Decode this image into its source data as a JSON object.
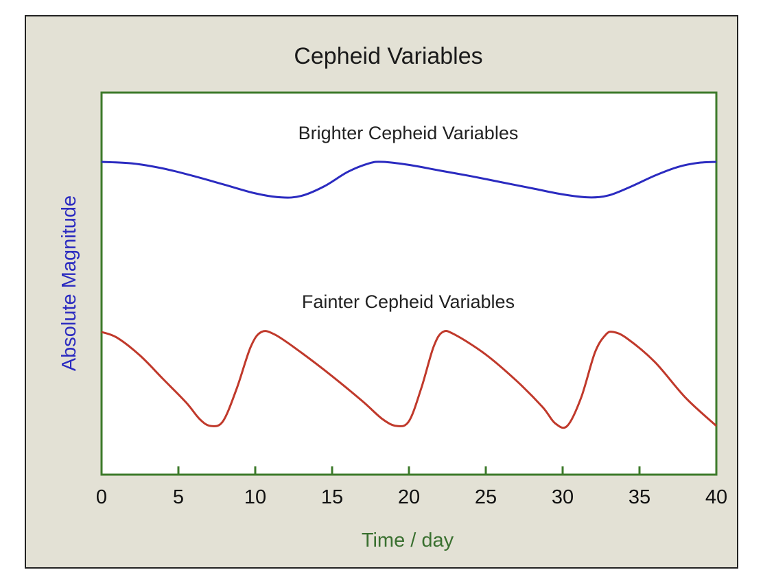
{
  "chart_data": {
    "type": "line",
    "title": "Cepheid Variables",
    "xlabel": "Time / day",
    "ylabel": "Absolute Magnitude",
    "xlim": [
      0,
      40
    ],
    "xticks": [
      0,
      5,
      10,
      15,
      20,
      25,
      30,
      35,
      40
    ],
    "y_tick_labels": false,
    "grid": false,
    "series": [
      {
        "name": "Brighter Cepheid Variables",
        "color": "#2b2bc0",
        "band": "upper",
        "x": [
          0,
          2,
          4,
          6,
          8,
          10,
          11.7,
          13,
          14.5,
          16,
          17.4,
          18.3,
          20,
          22,
          24,
          26,
          28,
          30,
          31.7,
          33,
          34.5,
          36,
          37.5,
          38.8,
          40
        ],
        "y": [
          1.0,
          0.97,
          0.87,
          0.72,
          0.55,
          0.38,
          0.3,
          0.33,
          0.52,
          0.8,
          0.97,
          1.0,
          0.94,
          0.83,
          0.72,
          0.6,
          0.48,
          0.36,
          0.3,
          0.34,
          0.52,
          0.73,
          0.9,
          0.98,
          1.0
        ]
      },
      {
        "name": "Fainter Cepheid Variables",
        "color": "#c0392b",
        "band": "lower",
        "x": [
          0,
          1,
          2.5,
          4,
          5.5,
          6.4,
          7.1,
          7.9,
          8.8,
          9.7,
          10.4,
          11.3,
          13,
          15,
          17,
          18.3,
          19.2,
          20,
          20.8,
          21.6,
          22.2,
          23,
          25,
          27,
          28.7,
          29.5,
          30.3,
          31.2,
          32.1,
          32.8,
          33.3,
          34.2,
          36,
          38,
          40
        ],
        "y": [
          1.0,
          0.94,
          0.75,
          0.5,
          0.25,
          0.07,
          0.0,
          0.05,
          0.4,
          0.84,
          1.0,
          0.97,
          0.78,
          0.53,
          0.26,
          0.07,
          0.0,
          0.05,
          0.4,
          0.84,
          1.0,
          0.97,
          0.76,
          0.48,
          0.2,
          0.03,
          0.0,
          0.3,
          0.78,
          0.97,
          1.0,
          0.93,
          0.68,
          0.3,
          0.0
        ]
      }
    ],
    "colors": {
      "frame": "#3c7a2a",
      "title": "#1a1a1a",
      "xlabel": "#3a7030",
      "ylabel": "#2b2bc0",
      "panel": "#e3e1d5"
    }
  }
}
